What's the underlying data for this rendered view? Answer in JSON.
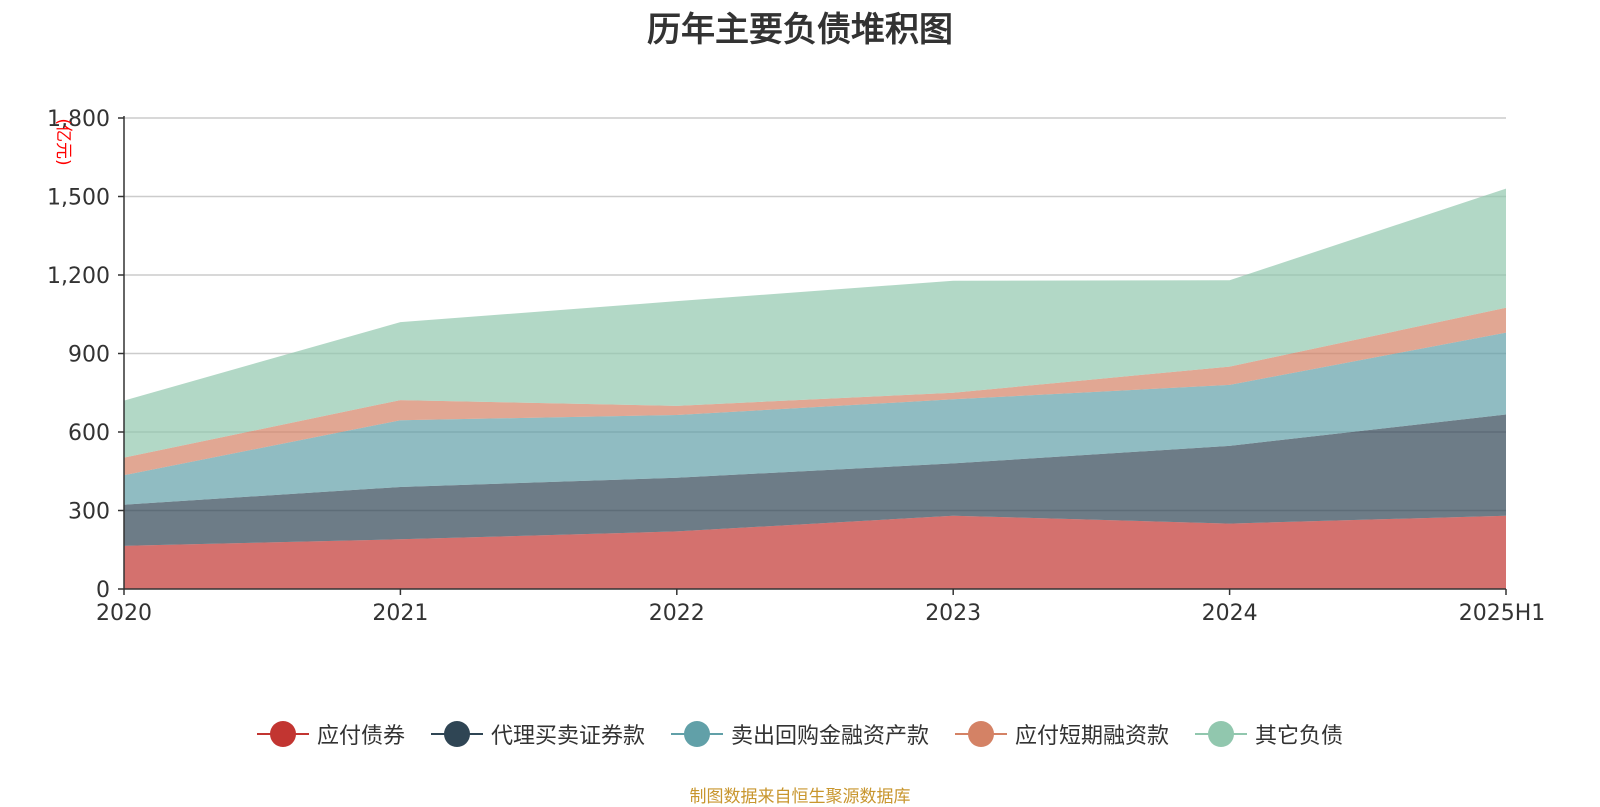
{
  "chart_data": {
    "type": "area",
    "stacked": true,
    "title": "历年主要负债堆积图",
    "unit_label": "(亿元)",
    "categories": [
      "2020",
      "2021",
      "2022",
      "2023",
      "2024",
      "2025H1"
    ],
    "ylim": [
      0,
      1800
    ],
    "yticks": [
      {
        "value": 0,
        "label": "0"
      },
      {
        "value": 300,
        "label": "300"
      },
      {
        "value": 600,
        "label": "600"
      },
      {
        "value": 900,
        "label": "900"
      },
      {
        "value": 1200,
        "label": "1,200"
      },
      {
        "value": 1500,
        "label": "1,500"
      },
      {
        "value": 1800,
        "label": "1,800"
      }
    ],
    "grid": true,
    "legend_position": "bottom",
    "series": [
      {
        "name": "应付债券",
        "color": "#c23531",
        "values": [
          165,
          190,
          220,
          280,
          250,
          280
        ]
      },
      {
        "name": "代理买卖证券款",
        "color": "#2f4554",
        "values": [
          157,
          200,
          205,
          200,
          297,
          387
        ]
      },
      {
        "name": "卖出回购金融资产款",
        "color": "#61a0a8",
        "values": [
          113,
          255,
          240,
          245,
          233,
          313
        ]
      },
      {
        "name": "应付短期融资款",
        "color": "#d48265",
        "values": [
          67,
          77,
          35,
          25,
          70,
          95
        ]
      },
      {
        "name": "其它负债",
        "color": "#91c7ae",
        "values": [
          218,
          298,
          400,
          428,
          330,
          455
        ]
      }
    ],
    "source": "制图数据来自恒生聚源数据库"
  }
}
